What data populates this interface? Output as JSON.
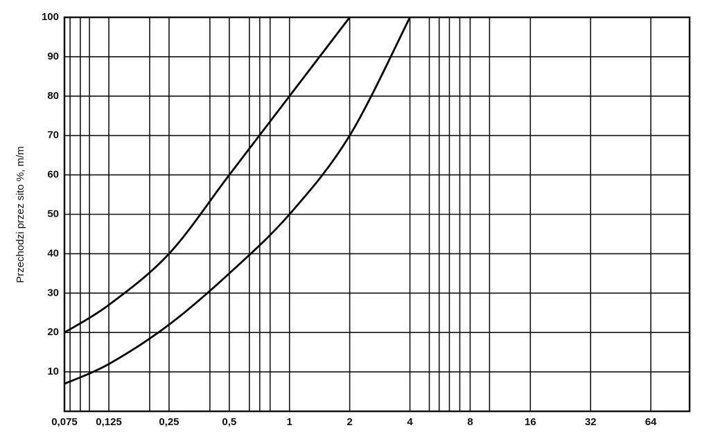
{
  "chart_data": {
    "type": "line",
    "y_label": "Przechodzi przez sito %, m/m",
    "x_scale": "log",
    "grid": true,
    "xlim": [
      0.075,
      100
    ],
    "ylim": [
      0,
      100
    ],
    "xticks": [
      {
        "value": 0.075,
        "label": "0,075"
      },
      {
        "value": 0.125,
        "label": "0,125"
      },
      {
        "value": 0.25,
        "label": "0,25"
      },
      {
        "value": 0.5,
        "label": "0,5"
      },
      1,
      2,
      4,
      8,
      16,
      32,
      64
    ],
    "x_minor_grid": [
      0.08,
      0.09,
      0.1,
      0.2,
      0.4,
      0.63,
      0.71,
      0.8,
      5,
      5.6,
      6.3,
      7.1,
      10
    ],
    "yticks": [
      10,
      20,
      30,
      40,
      50,
      60,
      70,
      80,
      90,
      100
    ],
    "series": [
      {
        "color": "#000000",
        "x": [
          0.075,
          0.125,
          0.25,
          0.5,
          1,
          2
        ],
        "values": [
          20,
          27,
          40,
          60,
          80,
          100
        ]
      },
      {
        "color": "#000000",
        "x": [
          0.075,
          0.125,
          0.25,
          0.5,
          1,
          2,
          4
        ],
        "values": [
          7,
          12,
          22,
          35,
          50,
          70,
          100
        ]
      }
    ]
  }
}
